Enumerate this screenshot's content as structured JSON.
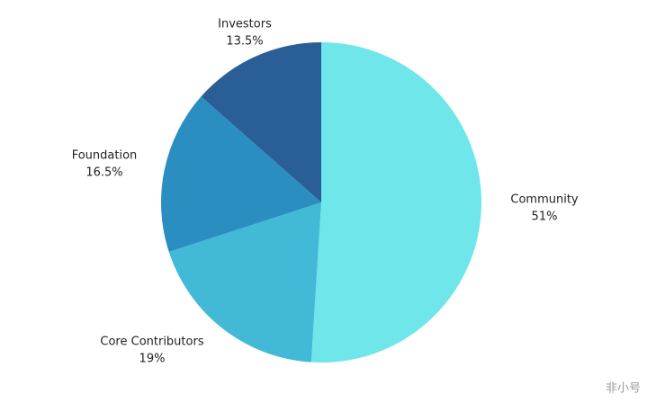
{
  "chart_data": {
    "type": "pie",
    "categories": [
      "Community",
      "Core Contributors",
      "Foundation",
      "Investors"
    ],
    "values": [
      51,
      19,
      16.5,
      13.5
    ],
    "value_labels": [
      "51%",
      "19%",
      "16.5%",
      "13.5%"
    ],
    "colors": [
      "#6ee6ea",
      "#42b9d6",
      "#2a8fc0",
      "#2a5e96"
    ]
  },
  "watermark": "非小号"
}
